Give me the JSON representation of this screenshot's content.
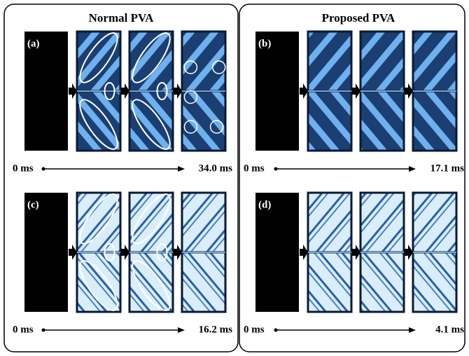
{
  "panels": [
    {
      "title": "Normal PVA",
      "rows": [
        {
          "label": "(a)",
          "start": "0 ms",
          "end": "34.0 ms"
        },
        {
          "label": "(c)",
          "start": "0 ms",
          "end": "16.2 ms"
        }
      ]
    },
    {
      "title": "Proposed PVA",
      "rows": [
        {
          "label": "(b)",
          "start": "0 ms",
          "end": "17.1 ms"
        },
        {
          "label": "(d)",
          "start": "0 ms",
          "end": "4.1 ms"
        }
      ]
    }
  ]
}
